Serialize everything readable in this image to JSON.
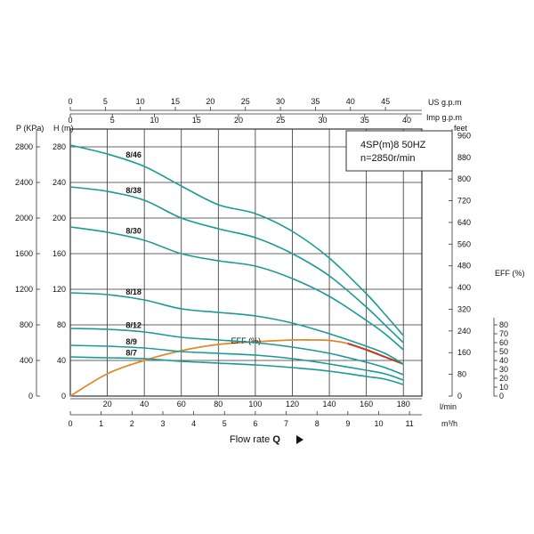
{
  "chart_data": {
    "type": "line",
    "info_box": {
      "model": "4SP(m)8  50HZ",
      "speed": "n=2850r/min"
    },
    "xlabel": "Flow rate",
    "xlabel_symbol": "Q",
    "x_unit": "l/min",
    "xlim": [
      0,
      190
    ],
    "x_ticks": [
      "20",
      "40",
      "60",
      "80",
      "100",
      "120",
      "140",
      "160",
      "180"
    ],
    "ylim": [
      0,
      300
    ],
    "y_left_unit": "H (m)",
    "y_left_ticks": [
      "0",
      "40",
      "80",
      "120",
      "160",
      "200",
      "240",
      "280"
    ],
    "p_unit": "P (KPa)",
    "p_ticks": [
      "0",
      "400",
      "800",
      "1200",
      "1600",
      "2000",
      "2400",
      "2800"
    ],
    "feet_unit": "feet",
    "feet_ticks": [
      "0",
      "80",
      "160",
      "240",
      "320",
      "400",
      "480",
      "560",
      "640",
      "720",
      "800",
      "880",
      "960"
    ],
    "eff_unit": "EFF (%)",
    "eff_ticks": [
      "0",
      "10",
      "20",
      "30",
      "40",
      "50",
      "60",
      "70",
      "80"
    ],
    "us_unit": "US g.p.m",
    "us_ticks": [
      "0",
      "5",
      "10",
      "15",
      "20",
      "25",
      "30",
      "35",
      "40",
      "45"
    ],
    "imp_unit": "Imp g.p.m",
    "imp_ticks": [
      "0",
      "5",
      "10",
      "15",
      "20",
      "25",
      "30",
      "35",
      "40"
    ],
    "m3_unit": "m³/h",
    "m3_ticks": [
      "0",
      "1",
      "2",
      "3",
      "4",
      "5",
      "6",
      "7",
      "8",
      "9",
      "10",
      "11"
    ],
    "series": [
      {
        "name": "8/46",
        "x": [
          0,
          20,
          40,
          60,
          80,
          100,
          120,
          140,
          160,
          170,
          180
        ],
        "y": [
          282,
          272,
          258,
          236,
          215,
          205,
          185,
          155,
          115,
          92,
          68
        ]
      },
      {
        "name": "8/38",
        "x": [
          0,
          20,
          40,
          60,
          80,
          100,
          120,
          140,
          160,
          170,
          180
        ],
        "y": [
          235,
          230,
          220,
          200,
          188,
          178,
          160,
          135,
          100,
          80,
          60
        ]
      },
      {
        "name": "8/30",
        "x": [
          0,
          20,
          40,
          60,
          80,
          100,
          120,
          140,
          160,
          170,
          180
        ],
        "y": [
          190,
          184,
          175,
          160,
          152,
          146,
          132,
          112,
          85,
          70,
          52
        ]
      },
      {
        "name": "8/18",
        "x": [
          0,
          20,
          40,
          60,
          80,
          100,
          120,
          140,
          160,
          170,
          180
        ],
        "y": [
          116,
          114,
          108,
          98,
          94,
          90,
          82,
          70,
          56,
          48,
          36
        ]
      },
      {
        "name": "8/12",
        "x": [
          0,
          20,
          40,
          60,
          80,
          100,
          120,
          140,
          160,
          170,
          180
        ],
        "y": [
          76,
          75,
          72,
          66,
          63,
          60,
          55,
          48,
          38,
          32,
          24
        ]
      },
      {
        "name": "8/9",
        "x": [
          0,
          20,
          40,
          60,
          80,
          100,
          120,
          140,
          160,
          170,
          180
        ],
        "y": [
          57,
          56,
          54,
          50,
          48,
          46,
          42,
          36,
          29,
          25,
          18
        ]
      },
      {
        "name": "8/7",
        "x": [
          0,
          20,
          40,
          60,
          80,
          100,
          120,
          140,
          160,
          170,
          180
        ],
        "y": [
          44,
          43,
          42,
          39,
          37,
          35,
          32,
          28,
          22,
          19,
          13
        ]
      }
    ],
    "efficiency": {
      "name": "EFF (%)",
      "x": [
        0,
        20,
        40,
        60,
        80,
        100,
        120,
        130,
        140,
        150,
        160,
        170,
        180
      ],
      "y": [
        0,
        25,
        40,
        51,
        58,
        61,
        63,
        63,
        62.5,
        59,
        52,
        44,
        36
      ],
      "peak_from": 150
    },
    "colors": {
      "curve": "#1a9a95",
      "efficiency": "#e0882a",
      "efficiency_peak": "#c0392b",
      "grid": "#333333"
    }
  }
}
